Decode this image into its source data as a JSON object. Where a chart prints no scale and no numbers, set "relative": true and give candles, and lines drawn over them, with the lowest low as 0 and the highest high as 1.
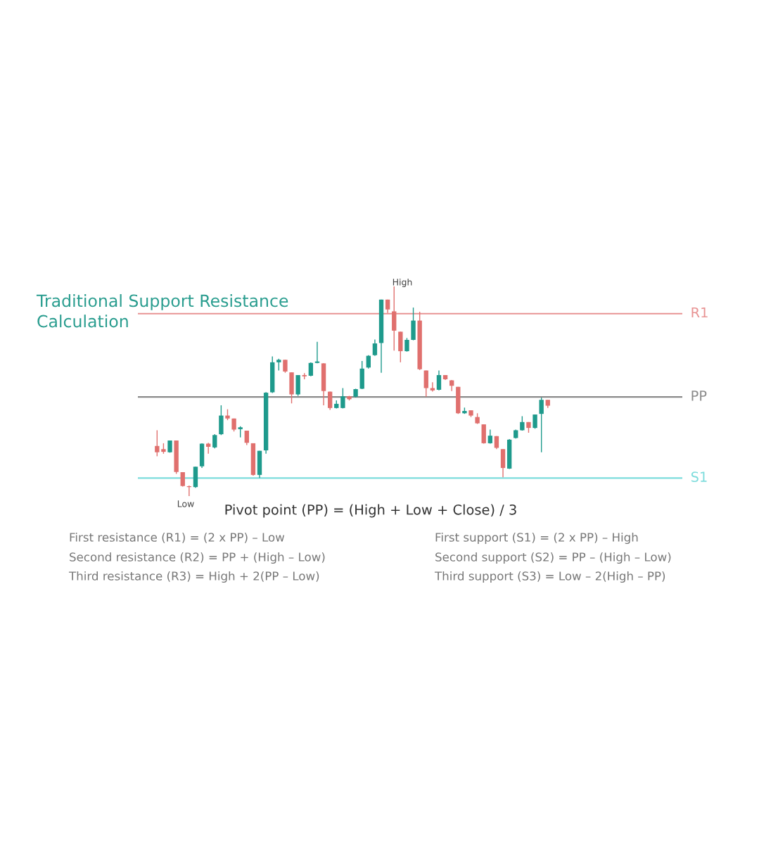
{
  "chart_data": {
    "type": "candlestick",
    "relative": true,
    "title": "Traditional Support Resistance Calculation",
    "categories": [
      null,
      null,
      null,
      null,
      null,
      null,
      null,
      null,
      null,
      null,
      null,
      null,
      null,
      null,
      null,
      null,
      null,
      null,
      null,
      null,
      null,
      null,
      null,
      null,
      null,
      null,
      null,
      null,
      null,
      null,
      null,
      null,
      null,
      null,
      null,
      null,
      null,
      null,
      null,
      null,
      null,
      null,
      null,
      null,
      null,
      null,
      null,
      null,
      null,
      null,
      null,
      null,
      null,
      null,
      null,
      null,
      null,
      null,
      null,
      null,
      null,
      null
    ],
    "ohlc": [
      [
        0.239,
        0.314,
        0.19,
        0.209
      ],
      [
        0.224,
        0.252,
        0.202,
        0.211
      ],
      [
        0.209,
        0.265,
        0.207,
        0.265
      ],
      [
        0.265,
        0.265,
        0.106,
        0.115
      ],
      [
        0.114,
        0.114,
        0.045,
        0.048
      ],
      [
        0.047,
        0.05,
        0,
        0.043
      ],
      [
        0.043,
        0.14,
        0.039,
        0.14
      ],
      [
        0.142,
        0.252,
        0.134,
        0.25
      ],
      [
        0.25,
        0.254,
        0.202,
        0.235
      ],
      [
        0.232,
        0.295,
        0.227,
        0.291
      ],
      [
        0.295,
        0.433,
        0.291,
        0.384
      ],
      [
        0.384,
        0.414,
        0.362,
        0.37
      ],
      [
        0.37,
        0.37,
        0.308,
        0.317
      ],
      [
        0.319,
        0.333,
        0.28,
        0.328
      ],
      [
        0.312,
        0.312,
        0.243,
        0.254
      ],
      [
        0.252,
        0.252,
        0.097,
        0.101
      ],
      [
        0.101,
        0.216,
        0.086,
        0.216
      ],
      [
        0.218,
        0.496,
        0.202,
        0.493
      ],
      [
        0.495,
        0.666,
        0.492,
        0.638
      ],
      [
        0.638,
        0.655,
        0.599,
        0.65
      ],
      [
        0.65,
        0.65,
        0.588,
        0.594
      ],
      [
        0.59,
        0.59,
        0.442,
        0.485
      ],
      [
        0.485,
        0.577,
        0.478,
        0.577
      ],
      [
        0.577,
        0.586,
        0.557,
        0.571
      ],
      [
        0.574,
        0.638,
        0.571,
        0.635
      ],
      [
        0.635,
        0.736,
        0.633,
        0.642
      ],
      [
        0.633,
        0.633,
        0.433,
        0.501
      ],
      [
        0.498,
        0.498,
        0.411,
        0.42
      ],
      [
        0.42,
        0.456,
        0.418,
        0.44
      ],
      [
        0.42,
        0.515,
        0.418,
        0.476
      ],
      [
        0.476,
        0.478,
        0.456,
        0.462
      ],
      [
        0.474,
        0.512,
        0.47,
        0.51
      ],
      [
        0.512,
        0.644,
        0.51,
        0.608
      ],
      [
        0.613,
        0.672,
        0.608,
        0.669
      ],
      [
        0.672,
        0.747,
        0.669,
        0.728
      ],
      [
        0.73,
        0.937,
        0.588,
        0.937
      ],
      [
        0.937,
        0.937,
        0.873,
        0.89
      ],
      [
        0.881,
        1,
        0.694,
        0.789
      ],
      [
        0.784,
        0.784,
        0.638,
        0.691
      ],
      [
        0.691,
        0.754,
        0.689,
        0.745
      ],
      [
        0.745,
        0.899,
        0.743,
        0.837
      ],
      [
        0.837,
        0.879,
        0.601,
        0.605
      ],
      [
        0.599,
        0.599,
        0.474,
        0.515
      ],
      [
        0.515,
        0.543,
        0.498,
        0.504
      ],
      [
        0.507,
        0.599,
        0.504,
        0.577
      ],
      [
        0.577,
        0.577,
        0.554,
        0.557
      ],
      [
        0.552,
        0.554,
        0.501,
        0.526
      ],
      [
        0.521,
        0.521,
        0.392,
        0.395
      ],
      [
        0.395,
        0.422,
        0.392,
        0.406
      ],
      [
        0.409,
        0.409,
        0.377,
        0.384
      ],
      [
        0.377,
        0.395,
        0.344,
        0.347
      ],
      [
        0.342,
        0.342,
        0.25,
        0.252
      ],
      [
        0.252,
        0.317,
        0.25,
        0.288
      ],
      [
        0.286,
        0.286,
        0.224,
        0.23
      ],
      [
        0.224,
        0.224,
        0.09,
        0.134
      ],
      [
        0.131,
        0.272,
        0.129,
        0.269
      ],
      [
        0.277,
        0.317,
        0.274,
        0.314
      ],
      [
        0.314,
        0.381,
        0.312,
        0.353
      ],
      [
        0.353,
        0.353,
        0.302,
        0.325
      ],
      [
        0.325,
        0.389,
        0.321,
        0.389
      ],
      [
        0.392,
        0.47,
        0.209,
        0.459
      ],
      [
        0.459,
        0.459,
        0.42,
        0.431
      ]
    ],
    "colors": [
      "#e0706e",
      "#e0706e",
      "#1e9a8c",
      "#e0706e",
      "#e0706e",
      "#e0706e",
      "#1e9a8c",
      "#1e9a8c",
      "#e0706e",
      "#1e9a8c",
      "#1e9a8c",
      "#e0706e",
      "#e0706e",
      "#1e9a8c",
      "#e0706e",
      "#e0706e",
      "#1e9a8c",
      "#1e9a8c",
      "#1e9a8c",
      "#1e9a8c",
      "#e0706e",
      "#e0706e",
      "#1e9a8c",
      "#e0706e",
      "#1e9a8c",
      "#1e9a8c",
      "#e0706e",
      "#e0706e",
      "#1e9a8c",
      "#1e9a8c",
      "#e0706e",
      "#1e9a8c",
      "#1e9a8c",
      "#1e9a8c",
      "#1e9a8c",
      "#1e9a8c",
      "#e0706e",
      "#e0706e",
      "#e0706e",
      "#1e9a8c",
      "#1e9a8c",
      "#e0706e",
      "#e0706e",
      "#e0706e",
      "#1e9a8c",
      "#e0706e",
      "#e0706e",
      "#e0706e",
      "#1e9a8c",
      "#e0706e",
      "#e0706e",
      "#e0706e",
      "#1e9a8c",
      "#e0706e",
      "#e0706e",
      "#1e9a8c",
      "#1e9a8c",
      "#1e9a8c",
      "#e0706e",
      "#1e9a8c",
      "#1e9a8c",
      "#e0706e"
    ],
    "ref_lines": [
      {
        "axis": "y",
        "value": 0.87,
        "label": "R1",
        "color": "#e89393"
      },
      {
        "axis": "y",
        "value": 0.473,
        "label": "PP",
        "color": "#8a8a8a"
      },
      {
        "axis": "y",
        "value": 0.086,
        "label": "S1",
        "color": "#7ddcdc"
      }
    ],
    "annotations": [
      "High",
      "Low",
      "Pivot point (PP) = (High + Low + Close) / 3",
      "First resistance (R1) = (2 x PP) – Low",
      "Second resistance (R2) = PP + (High – Low)",
      "Third resistance (R3) = High + 2(PP – Low)",
      "First support (S1) = (2 x PP) – High",
      "Second support (S2) = PP – (High – Low)",
      "Third support (S3) = Low – 2(High – PP)"
    ]
  }
}
